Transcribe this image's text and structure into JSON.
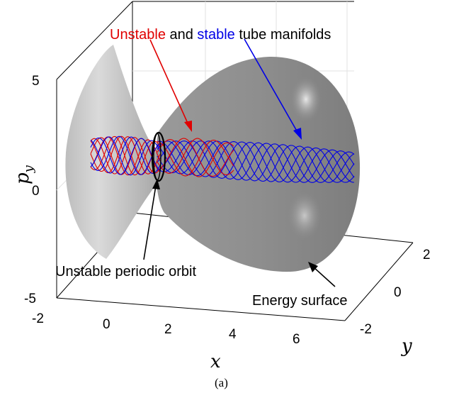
{
  "title": {
    "part1": "Unstable",
    "part2": " and ",
    "part3": "stable",
    "part4": " tube manifolds"
  },
  "annotations": {
    "orbit": "Unstable periodic orbit",
    "energy": "Energy surface"
  },
  "axes": {
    "x_label": "x",
    "y_label": "y",
    "z_label_base": "p",
    "z_label_sub": "y",
    "x_ticks": [
      "-2",
      "0",
      "2",
      "4",
      "6"
    ],
    "y_ticks": [
      "-2",
      "0",
      "2"
    ],
    "z_ticks": [
      "-5",
      "0",
      "5"
    ]
  },
  "caption": "(a)",
  "colors": {
    "unstable": "#e00000",
    "stable": "#0000e6",
    "surface_dark": "#8c8c8c",
    "surface_light": "#d4d4d4",
    "orbit": "#000000"
  }
}
